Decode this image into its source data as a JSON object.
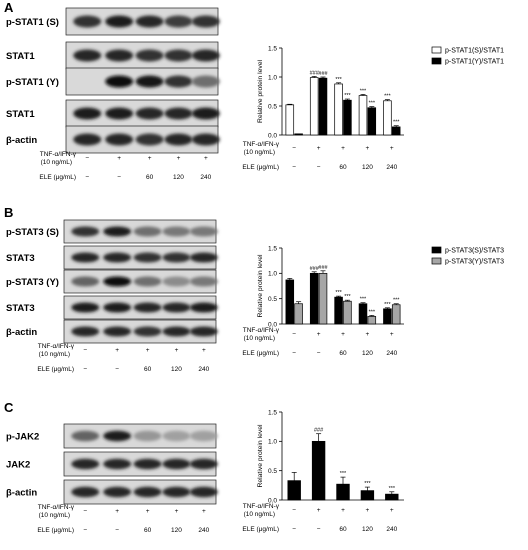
{
  "panels": [
    {
      "letter": "A",
      "blots": [
        {
          "label": "p-STAT1 (S)",
          "lanes": [
            0.75,
            0.85,
            0.8,
            0.7,
            0.75
          ]
        },
        {
          "label": "STAT1",
          "lanes": [
            0.8,
            0.8,
            0.75,
            0.75,
            0.8
          ]
        },
        {
          "label": "p-STAT1 (Y)",
          "lanes": [
            0.0,
            0.95,
            0.9,
            0.75,
            0.45
          ]
        },
        {
          "label": "STAT1",
          "lanes": [
            0.85,
            0.85,
            0.8,
            0.8,
            0.85
          ]
        },
        {
          "label": "β-actin",
          "lanes": [
            0.8,
            0.8,
            0.75,
            0.8,
            0.8
          ]
        }
      ],
      "conditions": {
        "row1_label": "TNF-α/IFN-γ",
        "row1_sub": "(10 ng/mL)",
        "row1_values": [
          "−",
          "+",
          "+",
          "+",
          "+"
        ],
        "row2_label": "ELE (μg/mL)",
        "row2_values": [
          "−",
          "−",
          "60",
          "120",
          "240"
        ]
      }
    },
    {
      "letter": "B",
      "blots": [
        {
          "label": "p-STAT3 (S)",
          "lanes": [
            0.75,
            0.85,
            0.45,
            0.4,
            0.4
          ]
        },
        {
          "label": "STAT3",
          "lanes": [
            0.8,
            0.8,
            0.75,
            0.75,
            0.8
          ]
        },
        {
          "label": "p-STAT3 (Y)",
          "lanes": [
            0.5,
            0.95,
            0.45,
            0.3,
            0.4
          ]
        },
        {
          "label": "STAT3",
          "lanes": [
            0.85,
            0.85,
            0.8,
            0.8,
            0.85
          ]
        },
        {
          "label": "β-actin",
          "lanes": [
            0.8,
            0.8,
            0.75,
            0.8,
            0.8
          ]
        }
      ],
      "conditions": {
        "row1_label": "TNF-α/IFN-γ",
        "row1_sub": "(10 ng/mL)",
        "row1_values": [
          "−",
          "+",
          "+",
          "+",
          "+"
        ],
        "row2_label": "ELE (μg/mL)",
        "row2_values": [
          "−",
          "−",
          "60",
          "120",
          "240"
        ]
      }
    },
    {
      "letter": "C",
      "blots": [
        {
          "label": "p-JAK2",
          "lanes": [
            0.5,
            0.85,
            0.25,
            0.2,
            0.2
          ]
        },
        {
          "label": "JAK2",
          "lanes": [
            0.8,
            0.8,
            0.8,
            0.8,
            0.8
          ]
        },
        {
          "label": "β-actin",
          "lanes": [
            0.8,
            0.8,
            0.8,
            0.8,
            0.8
          ]
        }
      ],
      "conditions": {
        "row1_label": "TNF-α/IFN-γ",
        "row1_sub": "(10 ng/mL)",
        "row1_values": [
          "−",
          "+",
          "+",
          "+",
          "+"
        ],
        "row2_label": "ELE (μg/mL)",
        "row2_values": [
          "−",
          "−",
          "60",
          "120",
          "240"
        ]
      }
    }
  ],
  "chart_data": [
    {
      "type": "bar",
      "panel": "A",
      "ylabel": "Relative protein level",
      "ylim": [
        0,
        1.5
      ],
      "yticks": [
        "0.0",
        "0.5",
        "1.0",
        "1.5"
      ],
      "series": [
        {
          "name": "p-STAT1(S)/STAT1",
          "color": "#ffffff",
          "values": [
            0.52,
            0.99,
            0.88,
            0.68,
            0.59
          ],
          "errors": [
            0.01,
            0.02,
            0.02,
            0.02,
            0.02
          ],
          "marks": [
            "",
            "###",
            "***",
            "***",
            "***"
          ]
        },
        {
          "name": "p-STAT1(Y)/STAT1",
          "color": "#000000",
          "values": [
            0.02,
            0.98,
            0.6,
            0.47,
            0.14
          ],
          "errors": [
            0.0,
            0.02,
            0.02,
            0.02,
            0.02
          ],
          "marks": [
            "",
            "###",
            "***",
            "***",
            "***"
          ]
        }
      ],
      "legend": "top-right",
      "conditions": {
        "row1_label": "TNF-α/IFN-γ",
        "row1_sub": "(10 ng/mL)",
        "row1_values": [
          "−",
          "+",
          "+",
          "+",
          "+"
        ],
        "row2_label": "ELE (μg/mL)",
        "row2_values": [
          "−",
          "−",
          "60",
          "120",
          "240"
        ]
      }
    },
    {
      "type": "bar",
      "panel": "B",
      "ylabel": "Relative protein level",
      "ylim": [
        0,
        1.5
      ],
      "yticks": [
        "0.0",
        "0.5",
        "1.0",
        "1.5"
      ],
      "series": [
        {
          "name": "p-STAT3(S)/STAT3",
          "color": "#000000",
          "values": [
            0.87,
            1.0,
            0.53,
            0.4,
            0.3
          ],
          "errors": [
            0.03,
            0.03,
            0.02,
            0.02,
            0.02
          ],
          "marks": [
            "",
            "###",
            "***",
            "***",
            "***"
          ]
        },
        {
          "name": "p-STAT3(Y)/STAT3",
          "color": "#a6a6a6",
          "values": [
            0.4,
            1.0,
            0.45,
            0.15,
            0.38
          ],
          "errors": [
            0.04,
            0.05,
            0.02,
            0.02,
            0.02
          ],
          "marks": [
            "",
            "###",
            "***",
            "***",
            "***"
          ]
        }
      ],
      "legend": "top-right",
      "conditions": {
        "row1_label": "TNF-α/IFN-γ",
        "row1_sub": "(10 ng/mL)",
        "row1_values": [
          "−",
          "+",
          "+",
          "+",
          "+"
        ],
        "row2_label": "ELE (μg/mL)",
        "row2_values": [
          "−",
          "−",
          "60",
          "120",
          "240"
        ]
      }
    },
    {
      "type": "bar",
      "panel": "C",
      "ylabel": "Relative protein level",
      "ylim": [
        0,
        1.5
      ],
      "yticks": [
        "0.0",
        "0.5",
        "1.0",
        "1.5"
      ],
      "series": [
        {
          "name": "",
          "color": "#000000",
          "values": [
            0.33,
            1.0,
            0.27,
            0.16,
            0.1
          ],
          "errors": [
            0.14,
            0.13,
            0.12,
            0.06,
            0.04
          ],
          "marks": [
            "",
            "###",
            "***",
            "***",
            "***"
          ]
        }
      ],
      "legend": "none",
      "conditions": {
        "row1_label": "TNF-α/IFN-γ",
        "row1_sub": "(10 ng/mL)",
        "row1_values": [
          "−",
          "+",
          "+",
          "+",
          "+"
        ],
        "row2_label": "ELE (μg/mL)",
        "row2_values": [
          "−",
          "−",
          "60",
          "120",
          "240"
        ]
      }
    }
  ]
}
